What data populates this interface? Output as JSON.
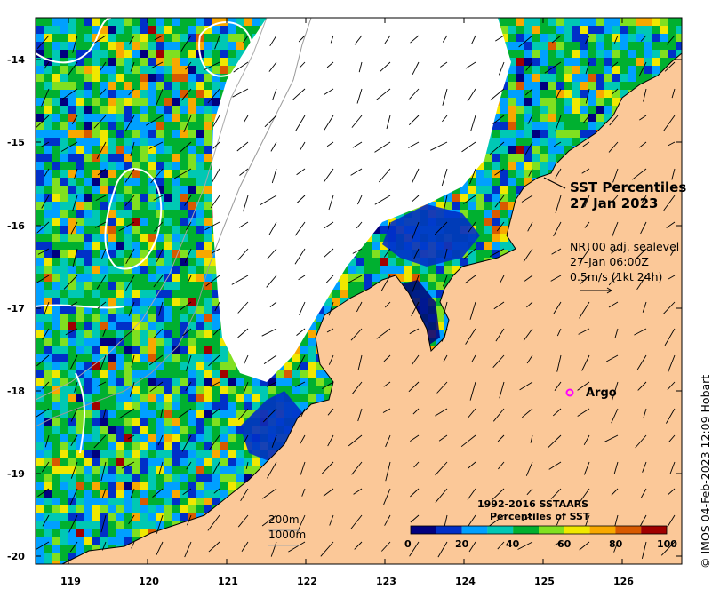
{
  "map": {
    "title_line1": "SST Percentiles",
    "title_line2": "27 Jan 2023",
    "nrt_line1": "NRT00 adj. sealevel",
    "nrt_line2": "27-Jan 06:00Z",
    "nrt_line3": "0.5m/s (1kt 24h)",
    "argo_label": "Argo",
    "scale_200": "200m",
    "scale_1000": "1000m",
    "credit": "© IMOS 04-Feb-2023 12:09 Hobart",
    "colors": {
      "land": "#fbc898",
      "argo_marker": "#ff00ff",
      "ocean_no_data": "#ffffff"
    }
  },
  "axes": {
    "y_ticks": [
      "-14",
      "-15",
      "-16",
      "-17",
      "-18",
      "-19",
      "-20"
    ],
    "x_ticks": [
      "119",
      "120",
      "121",
      "122",
      "123",
      "124",
      "125",
      "126"
    ]
  },
  "legend": {
    "title_line1": "1992-2016 SSTAARS",
    "title_line2": "Percentiles of SST",
    "ticks": [
      "0",
      "20",
      "40",
      "60",
      "80",
      "100"
    ],
    "colors": [
      "#00007f",
      "#0030c8",
      "#00a0ff",
      "#00c8b4",
      "#00b030",
      "#80e020",
      "#f0e800",
      "#f8a800",
      "#d85a00",
      "#a00000"
    ]
  }
}
